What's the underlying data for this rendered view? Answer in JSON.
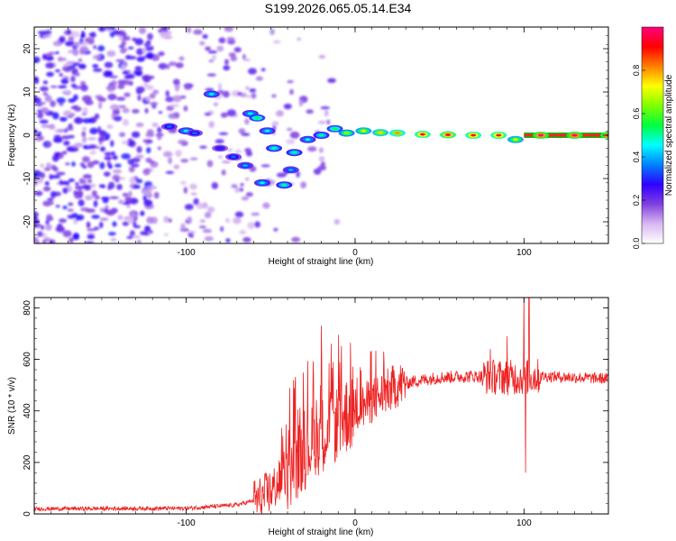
{
  "title": "S199.2026.065.05.14.E34",
  "charts": [
    {
      "type": "heatmap",
      "xlabel": "Height of straight line (km)",
      "ylabel": "Frequency (Hz)",
      "xlim": [
        -190,
        150
      ],
      "ylim": [
        -25,
        25
      ],
      "xticks": [
        -100,
        0,
        100
      ],
      "yticks": [
        -20,
        -10,
        0,
        10,
        20
      ],
      "colorbar": {
        "label": "Normalized spectral amplitude",
        "range": [
          0,
          1
        ],
        "ticks": [
          "0.0",
          "0.2",
          "0.4",
          "0.6",
          "0.8"
        ],
        "colormap": [
          "#ffffff",
          "#d8b8f0",
          "#8040e0",
          "#3000ff",
          "#0080ff",
          "#00ffff",
          "#00ff40",
          "#80ff00",
          "#ffff00",
          "#ff8000",
          "#ff0000",
          "#ff0080"
        ]
      },
      "ridge": [
        {
          "x": -110,
          "y": 2.0,
          "amp": 0.35
        },
        {
          "x": -100,
          "y": 1.0,
          "amp": 0.45
        },
        {
          "x": -95,
          "y": 0.5,
          "amp": 0.35
        },
        {
          "x": -85,
          "y": 9.5,
          "amp": 0.45
        },
        {
          "x": -80,
          "y": -3.0,
          "amp": 0.3
        },
        {
          "x": -72,
          "y": -5.0,
          "amp": 0.35
        },
        {
          "x": -65,
          "y": -7.0,
          "amp": 0.4
        },
        {
          "x": -62,
          "y": 5.0,
          "amp": 0.45
        },
        {
          "x": -58,
          "y": 4.0,
          "amp": 0.55
        },
        {
          "x": -52,
          "y": 1.0,
          "amp": 0.45
        },
        {
          "x": -48,
          "y": -3.0,
          "amp": 0.5
        },
        {
          "x": -55,
          "y": -11.0,
          "amp": 0.45
        },
        {
          "x": -42,
          "y": -11.5,
          "amp": 0.5
        },
        {
          "x": -38,
          "y": -8.0,
          "amp": 0.4
        },
        {
          "x": -36,
          "y": -4.0,
          "amp": 0.5
        },
        {
          "x": -28,
          "y": -1.0,
          "amp": 0.45
        },
        {
          "x": -20,
          "y": 0.0,
          "amp": 0.5
        },
        {
          "x": -12,
          "y": 1.5,
          "amp": 0.55
        },
        {
          "x": -5,
          "y": 0.5,
          "amp": 0.65
        },
        {
          "x": 5,
          "y": 1.0,
          "amp": 0.7
        },
        {
          "x": 15,
          "y": 0.6,
          "amp": 0.75
        },
        {
          "x": 25,
          "y": 0.5,
          "amp": 0.8
        },
        {
          "x": 40,
          "y": 0.2,
          "amp": 0.9
        },
        {
          "x": 55,
          "y": 0.1,
          "amp": 0.95
        },
        {
          "x": 70,
          "y": 0.0,
          "amp": 0.9
        },
        {
          "x": 85,
          "y": 0.0,
          "amp": 0.9
        },
        {
          "x": 95,
          "y": -1.0,
          "amp": 0.7
        },
        {
          "x": 110,
          "y": 0.0,
          "amp": 1.0
        },
        {
          "x": 130,
          "y": 0.0,
          "amp": 1.0
        },
        {
          "x": 150,
          "y": 0.0,
          "amp": 1.0
        }
      ]
    },
    {
      "type": "line",
      "xlabel": "Height of straight line (km)",
      "ylabel": "SNR (10 * v/v)",
      "xlim": [
        -190,
        150
      ],
      "ylim": [
        0,
        840
      ],
      "xticks": [
        -100,
        0,
        100
      ],
      "yticks": [
        0,
        200,
        400,
        600,
        800
      ],
      "color": "#ee2222",
      "envelope": {
        "x": [
          -190,
          -100,
          -70,
          -55,
          -45,
          -35,
          -25,
          -15,
          -5,
          5,
          15,
          25,
          35,
          50,
          70,
          90,
          100,
          110,
          130,
          150
        ],
        "y": [
          20,
          22,
          35,
          60,
          120,
          200,
          280,
          330,
          380,
          420,
          460,
          500,
          515,
          530,
          535,
          530,
          530,
          535,
          530,
          525
        ]
      },
      "spikes": [
        {
          "x": -30,
          "y": 400
        },
        {
          "x": -20,
          "y": 730
        },
        {
          "x": -13,
          "y": 590
        },
        {
          "x": -5,
          "y": 510
        },
        {
          "x": 80,
          "y": 640
        },
        {
          "x": 90,
          "y": 690
        },
        {
          "x": 100,
          "y": 840
        },
        {
          "x": 103,
          "y": 850
        },
        {
          "x": 101,
          "y": 160
        }
      ]
    }
  ]
}
